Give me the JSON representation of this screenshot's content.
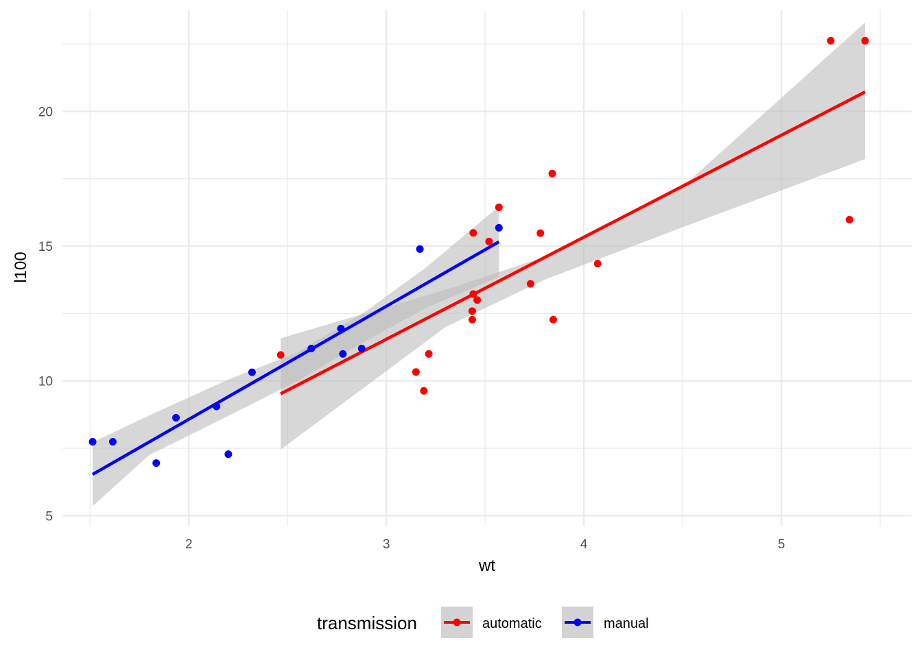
{
  "chart_data": {
    "type": "scatter",
    "title": "",
    "xlabel": "wt",
    "ylabel": "l100",
    "xlim": [
      1.36,
      5.66
    ],
    "ylim": [
      4.6,
      23.75
    ],
    "x_ticks": [
      2,
      3,
      4,
      5
    ],
    "x_tick_labels": [
      "2",
      "3",
      "4",
      "5"
    ],
    "y_ticks": [
      5,
      10,
      15,
      20
    ],
    "y_tick_labels": [
      "5",
      "10",
      "15",
      "20"
    ],
    "x_minor_ticks": [
      1.5,
      2.5,
      3.5,
      4.5,
      5.5
    ],
    "y_minor_ticks": [
      7.5,
      12.5,
      17.5,
      22.5
    ],
    "grid": true,
    "legend": {
      "title": "transmission",
      "position": "bottom",
      "entries": [
        "automatic",
        "manual"
      ]
    },
    "series": [
      {
        "name": "automatic",
        "color": "#ff0000",
        "points": [
          {
            "x": 2.465,
            "y": 10.96
          },
          {
            "x": 3.15,
            "y": 10.33
          },
          {
            "x": 3.19,
            "y": 9.63
          },
          {
            "x": 3.215,
            "y": 11.0
          },
          {
            "x": 3.435,
            "y": 12.27
          },
          {
            "x": 3.435,
            "y": 12.59
          },
          {
            "x": 3.44,
            "y": 13.22
          },
          {
            "x": 3.44,
            "y": 15.49
          },
          {
            "x": 3.46,
            "y": 13.0
          },
          {
            "x": 3.52,
            "y": 15.17
          },
          {
            "x": 3.57,
            "y": 16.44
          },
          {
            "x": 3.73,
            "y": 13.6
          },
          {
            "x": 3.78,
            "y": 15.48
          },
          {
            "x": 3.84,
            "y": 17.69
          },
          {
            "x": 3.845,
            "y": 12.27
          },
          {
            "x": 4.07,
            "y": 14.35
          },
          {
            "x": 5.25,
            "y": 22.62
          },
          {
            "x": 5.345,
            "y": 15.98
          },
          {
            "x": 5.424,
            "y": 22.62
          }
        ],
        "fit": {
          "x": [
            2.465,
            5.424
          ],
          "y": [
            9.52,
            20.72
          ]
        },
        "ci_upper": [
          {
            "x": 2.465,
            "y": 11.58
          },
          {
            "x": 3.3,
            "y": 13.38
          },
          {
            "x": 3.8,
            "y": 14.6
          },
          {
            "x": 4.5,
            "y": 17.2
          },
          {
            "x": 5.424,
            "y": 23.3
          }
        ],
        "ci_lower": [
          {
            "x": 5.424,
            "y": 18.23
          },
          {
            "x": 4.5,
            "y": 15.7
          },
          {
            "x": 3.8,
            "y": 13.75
          },
          {
            "x": 3.3,
            "y": 12.0
          },
          {
            "x": 2.465,
            "y": 7.45
          }
        ]
      },
      {
        "name": "manual",
        "color": "#0000ff",
        "points": [
          {
            "x": 1.513,
            "y": 7.74
          },
          {
            "x": 1.615,
            "y": 7.74
          },
          {
            "x": 1.835,
            "y": 6.95
          },
          {
            "x": 1.935,
            "y": 8.63
          },
          {
            "x": 2.14,
            "y": 9.05
          },
          {
            "x": 2.2,
            "y": 7.28
          },
          {
            "x": 2.32,
            "y": 10.32
          },
          {
            "x": 2.62,
            "y": 11.2
          },
          {
            "x": 2.77,
            "y": 11.94
          },
          {
            "x": 2.78,
            "y": 11.0
          },
          {
            "x": 2.875,
            "y": 11.2
          },
          {
            "x": 3.17,
            "y": 14.89
          },
          {
            "x": 3.57,
            "y": 15.68
          }
        ],
        "fit": {
          "x": [
            1.513,
            3.57
          ],
          "y": [
            6.53,
            15.16
          ]
        },
        "ci_upper": [
          {
            "x": 1.513,
            "y": 7.72
          },
          {
            "x": 1.8,
            "y": 8.72
          },
          {
            "x": 2.2,
            "y": 10.05
          },
          {
            "x": 2.55,
            "y": 11.05
          },
          {
            "x": 2.9,
            "y": 12.6
          },
          {
            "x": 3.2,
            "y": 14.2
          },
          {
            "x": 3.57,
            "y": 16.47
          }
        ],
        "ci_lower": [
          {
            "x": 3.57,
            "y": 13.86
          },
          {
            "x": 3.2,
            "y": 12.7
          },
          {
            "x": 2.9,
            "y": 11.5
          },
          {
            "x": 2.55,
            "y": 10.0
          },
          {
            "x": 2.2,
            "y": 8.7
          },
          {
            "x": 1.8,
            "y": 7.25
          },
          {
            "x": 1.513,
            "y": 5.35
          }
        ]
      }
    ],
    "ci_fill_color": "#bdbdbd",
    "grid_color": "#ebebeb"
  }
}
